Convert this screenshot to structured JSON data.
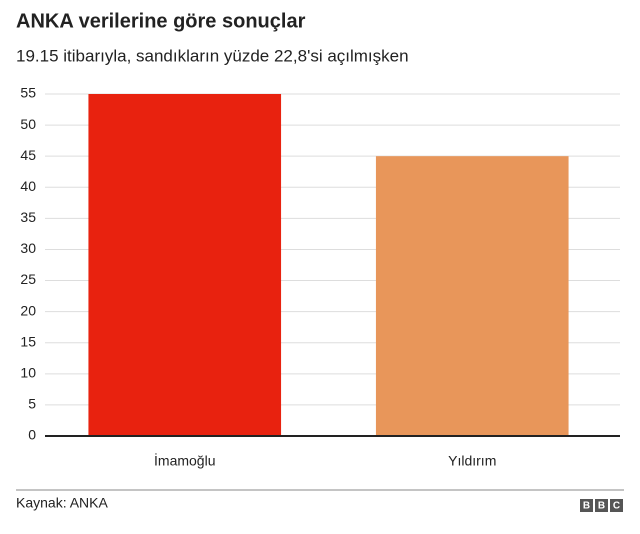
{
  "chart_data": {
    "type": "bar",
    "title": "ANKA verilerine göre sonuçlar",
    "subtitle": "19.15 itibarıyla, sandıkların yüzde 22,8'si açılmışken",
    "categories": [
      "İmamoğlu",
      "Yıldırım"
    ],
    "values": [
      55,
      45
    ],
    "colors": [
      "#e8220f",
      "#e8965a"
    ],
    "ylim": [
      0,
      55
    ],
    "yticks": [
      0,
      5,
      10,
      15,
      20,
      25,
      30,
      35,
      40,
      45,
      50,
      55
    ],
    "grid": true,
    "source": "Kaynak: ANKA",
    "logo": [
      "B",
      "B",
      "C"
    ]
  }
}
